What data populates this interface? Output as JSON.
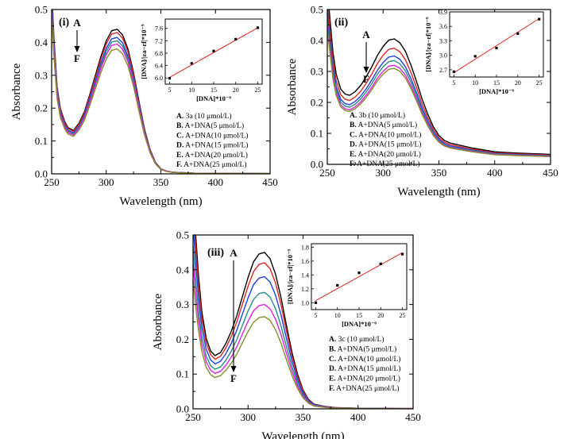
{
  "chart_data": [
    {
      "type": "line",
      "panel_label": "(i)",
      "xlabel": "Wavelength (nm)",
      "ylabel": "Absorbance",
      "xlim": [
        250,
        450
      ],
      "ylim": [
        0.0,
        0.5
      ],
      "xticks": [
        "250",
        "300",
        "350",
        "400",
        "450"
      ],
      "yticks": [
        "0.0",
        "0.1",
        "0.2",
        "0.3",
        "0.4",
        "0.5"
      ],
      "arrow_from": "A",
      "arrow_to": "F",
      "series": [
        {
          "name": "A. 3a (10 μmol/L)",
          "color": "#000000",
          "peak": 0.44
        },
        {
          "name": "B. A+DNA(5 μmol/L)",
          "color": "#e0241f",
          "peak": 0.43
        },
        {
          "name": "C. A+DNA(10 μmol/L)",
          "color": "#1f3fe0",
          "peak": 0.415
        },
        {
          "name": "D. A+DNA(15 μmol/L)",
          "color": "#2a8a8a",
          "peak": 0.405
        },
        {
          "name": "E. A+DNA(20 μmol/L)",
          "color": "#e020e0",
          "peak": 0.395
        },
        {
          "name": "F. A+DNA(25 μmol/L)",
          "color": "#8a8a2a",
          "peak": 0.38
        }
      ],
      "shape": {
        "x": [
          250,
          252,
          255,
          258,
          262,
          265,
          270,
          275,
          280,
          285,
          290,
          295,
          300,
          305,
          310,
          315,
          320,
          325,
          330,
          335,
          340,
          345,
          350,
          355,
          360,
          370,
          380,
          400,
          420,
          450
        ],
        "frac": [
          1.3,
          0.95,
          0.6,
          0.45,
          0.36,
          0.32,
          0.3,
          0.35,
          0.43,
          0.55,
          0.68,
          0.81,
          0.92,
          0.99,
          1.0,
          0.96,
          0.86,
          0.7,
          0.5,
          0.31,
          0.17,
          0.08,
          0.035,
          0.02,
          0.012,
          0.008,
          0.005,
          0.004,
          0.003,
          0.002
        ]
      },
      "inset": {
        "type": "scatter",
        "xlabel": "[DNA]*10⁻⁶",
        "ylabel": "[DNA]/|εa−εf|*10⁻⁹",
        "xlim": [
          4,
          26
        ],
        "ylim": [
          5.8,
          7.9
        ],
        "xticks": [
          5,
          10,
          15,
          20,
          25
        ],
        "yticks": [
          6.0,
          6.4,
          6.8,
          7.2,
          7.6
        ],
        "x": [
          5,
          10,
          15,
          20,
          25
        ],
        "y": [
          5.99,
          6.47,
          6.87,
          7.25,
          7.62
        ],
        "fit": [
          [
            5,
            6.02
          ],
          [
            25,
            7.62
          ]
        ]
      }
    },
    {
      "type": "line",
      "panel_label": "(ii)",
      "xlabel": "Wavelength (nm)",
      "ylabel": "Absorbance",
      "xlim": [
        250,
        450
      ],
      "ylim": [
        0.0,
        0.5
      ],
      "xticks": [
        "250",
        "300",
        "350",
        "400",
        "450"
      ],
      "yticks": [
        "0.0",
        "0.1",
        "0.2",
        "0.3",
        "0.4",
        "0.5"
      ],
      "arrow_from": "A",
      "arrow_to": "F",
      "series": [
        {
          "name": "A. 3b (10 μmol/L)",
          "color": "#000000",
          "peak": 0.405
        },
        {
          "name": "B. A+DNA(5 μmol/L)",
          "color": "#e0241f",
          "peak": 0.375
        },
        {
          "name": "C. A+DNA(10 μmol/L)",
          "color": "#1f3fe0",
          "peak": 0.35
        },
        {
          "name": "D. A+DNA(15 μmol/L)",
          "color": "#2a8a8a",
          "peak": 0.335
        },
        {
          "name": "E. A+DNA(20 μmol/L)",
          "color": "#e020e0",
          "peak": 0.32
        },
        {
          "name": "F. A+DNA(25 μmol/L)",
          "color": "#8a8a2a",
          "peak": 0.31
        }
      ],
      "shape": {
        "x": [
          250,
          252,
          255,
          258,
          262,
          266,
          270,
          275,
          280,
          285,
          290,
          295,
          300,
          305,
          310,
          315,
          320,
          325,
          330,
          335,
          340,
          345,
          350,
          355,
          360,
          370,
          380,
          400,
          420,
          450
        ],
        "frac": [
          1.4,
          1.2,
          0.9,
          0.72,
          0.6,
          0.56,
          0.55,
          0.58,
          0.63,
          0.7,
          0.78,
          0.87,
          0.94,
          0.99,
          1.0,
          0.97,
          0.9,
          0.79,
          0.66,
          0.52,
          0.4,
          0.3,
          0.23,
          0.19,
          0.17,
          0.15,
          0.13,
          0.1,
          0.09,
          0.08
        ]
      },
      "inset": {
        "type": "scatter",
        "xlabel": "[DNA]*10⁻⁶",
        "ylabel": "[DNA]/|εa−εf|*10⁻⁹",
        "xlim": [
          4,
          26
        ],
        "ylim": [
          2.55,
          3.9
        ],
        "xticks": [
          5,
          10,
          15,
          20,
          25
        ],
        "yticks": [
          2.7,
          3.0,
          3.3,
          3.6,
          3.9
        ],
        "x": [
          5,
          10,
          15,
          20,
          25
        ],
        "y": [
          2.66,
          2.98,
          3.15,
          3.45,
          3.75
        ],
        "fit": [
          [
            5,
            2.64
          ],
          [
            25,
            3.76
          ]
        ]
      }
    },
    {
      "type": "line",
      "panel_label": "(iii)",
      "xlabel": "Wavelength (nm)",
      "ylabel": "Absorbance",
      "xlim": [
        250,
        450
      ],
      "ylim": [
        0.0,
        0.5
      ],
      "xticks": [
        "250",
        "300",
        "350",
        "400",
        "450"
      ],
      "yticks": [
        "0.0",
        "0.1",
        "0.2",
        "0.3",
        "0.4",
        "0.5"
      ],
      "arrow_from": "A",
      "arrow_to": "F",
      "series": [
        {
          "name": "A. 3c (10 μmol/L)",
          "color": "#000000",
          "peak": 0.45
        },
        {
          "name": "B. A+DNA(5 μmol/L)",
          "color": "#e0241f",
          "peak": 0.42
        },
        {
          "name": "C. A+DNA(10 μmol/L)",
          "color": "#1f3fe0",
          "peak": 0.38
        },
        {
          "name": "D. A+DNA(15 μmol/L)",
          "color": "#2a8a8a",
          "peak": 0.335
        },
        {
          "name": "E. A+DNA(20 μmol/L)",
          "color": "#e020e0",
          "peak": 0.3
        },
        {
          "name": "F. A+DNA(25 μmol/L)",
          "color": "#8a8a2a",
          "peak": 0.265
        }
      ],
      "shape": {
        "x": [
          250,
          252,
          255,
          258,
          262,
          266,
          270,
          275,
          280,
          285,
          290,
          295,
          300,
          305,
          310,
          315,
          320,
          325,
          330,
          335,
          340,
          345,
          350,
          355,
          360,
          370,
          380,
          400,
          420,
          450
        ],
        "frac": [
          1.4,
          1.15,
          0.85,
          0.62,
          0.45,
          0.37,
          0.34,
          0.36,
          0.42,
          0.5,
          0.6,
          0.72,
          0.84,
          0.94,
          0.99,
          1.0,
          0.96,
          0.86,
          0.71,
          0.53,
          0.36,
          0.22,
          0.12,
          0.06,
          0.03,
          0.015,
          0.008,
          0.004,
          0.003,
          0.002
        ]
      },
      "inset": {
        "type": "scatter",
        "xlabel": "[DNA]*10⁻⁶",
        "ylabel": "[DNA]/|εa−εf|*10⁻⁹",
        "xlim": [
          4,
          26
        ],
        "ylim": [
          0.9,
          1.85
        ],
        "xticks": [
          5,
          10,
          15,
          20,
          25
        ],
        "yticks": [
          1.0,
          1.2,
          1.4,
          1.6,
          1.8
        ],
        "x": [
          5,
          10,
          15,
          20,
          25
        ],
        "y": [
          1.0,
          1.25,
          1.43,
          1.56,
          1.7
        ],
        "fit": [
          [
            5,
            1.03
          ],
          [
            25,
            1.72
          ]
        ]
      }
    }
  ]
}
